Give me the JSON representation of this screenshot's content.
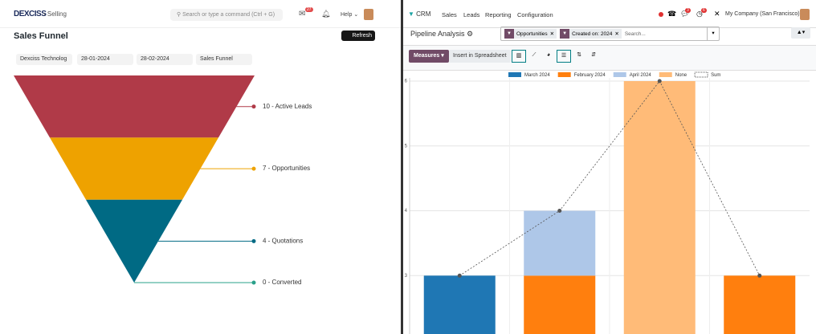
{
  "left": {
    "logo": "DEXCISS",
    "breadcrumb": "Selling",
    "search_placeholder": "Search or type a command (Ctrl + G)",
    "notification_count": "27",
    "help": "Help",
    "page_title": "Sales Funnel",
    "refresh": "Refresh",
    "filters": [
      "Dexciss Technolog",
      "28-01-2024",
      "28-02-2024",
      "Sales Funnel"
    ],
    "funnel": {
      "type": "funnel",
      "stages": [
        {
          "label": "10 - Active Leads",
          "value": 10,
          "color": "#b03a48"
        },
        {
          "label": "7 - Opportunities",
          "value": 7,
          "color": "#eea200"
        },
        {
          "label": "4 - Quotations",
          "value": 4,
          "color": "#006a84"
        },
        {
          "label": "0 - Converted",
          "value": 0,
          "color": "#2aa08a"
        }
      ]
    }
  },
  "right": {
    "app": "CRM",
    "menu": [
      "Sales",
      "Leads",
      "Reporting",
      "Configuration"
    ],
    "badges": [
      "3",
      "6"
    ],
    "company": "My Company (San Francisco)",
    "view_title": "Pipeline Analysis",
    "facets": [
      "Opportunities",
      "Created on: 2024"
    ],
    "search_placeholder": "Search...",
    "measures": "Measures",
    "insert": "Insert in Spreadsheet",
    "chart_data": {
      "type": "bar",
      "stacked": true,
      "categories": [
        null,
        null,
        null,
        null
      ],
      "series": [
        {
          "name": "March 2024",
          "color": "#1f77b4",
          "values": [
            3,
            null,
            null,
            null
          ]
        },
        {
          "name": "February 2024",
          "color": "#ff7f0e",
          "values": [
            null,
            3,
            null,
            3
          ]
        },
        {
          "name": "April 2024",
          "color": "#aec7e8",
          "values": [
            null,
            1,
            null,
            null
          ]
        },
        {
          "name": "None",
          "color": "#ffbb78",
          "values": [
            null,
            null,
            6,
            null
          ]
        },
        {
          "name": "Sum",
          "color": "#555555",
          "type": "line",
          "values": [
            3,
            4,
            6,
            3
          ]
        }
      ],
      "ylim": [
        2.1,
        6
      ],
      "yticks": [
        3,
        4,
        5,
        6
      ],
      "grid": true,
      "legend": "top"
    }
  }
}
